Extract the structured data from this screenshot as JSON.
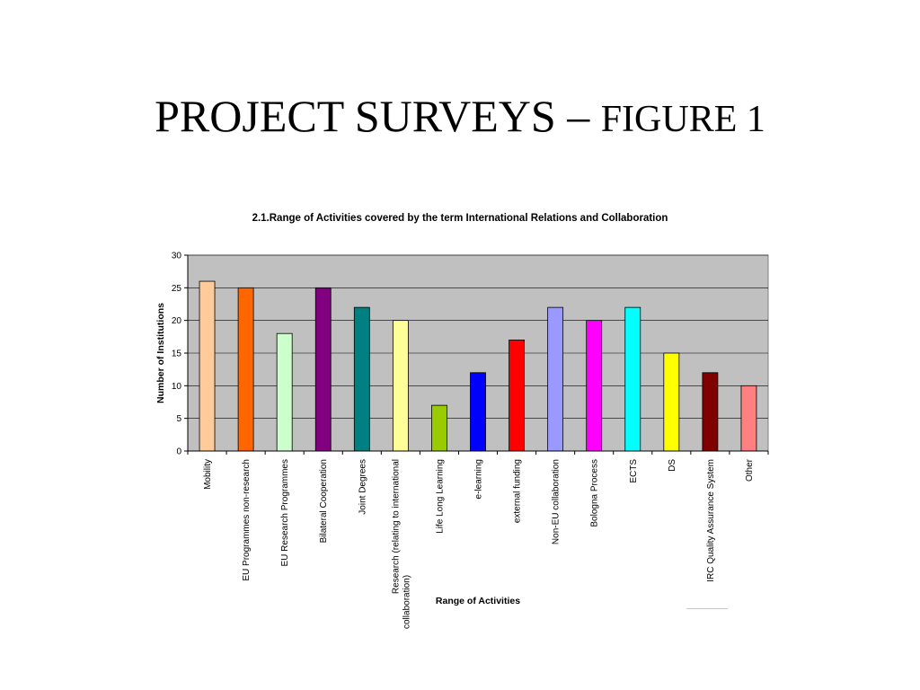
{
  "slide": {
    "title_main": "PROJECT SURVEYS – ",
    "title_sub": "FIGURE 1"
  },
  "chart_data": {
    "type": "bar",
    "title": "2.1.Range of Activities covered by the term International Relations and Collaboration",
    "xlabel": "Range of Activities",
    "ylabel": "Number of Institutions",
    "ylim": [
      0,
      30
    ],
    "yticks": [
      0,
      5,
      10,
      15,
      20,
      25,
      30
    ],
    "grid": true,
    "plot_background": "#c0c0c0",
    "categories": [
      "Mobility",
      "EU Programmes non-research",
      "EU Research Programmes",
      "Bilateral Cooperation",
      "Joint Degrees",
      "Research (relating to international collaboration)",
      "Life Long Learning",
      "e-learning",
      "external funding",
      "Non-EU collaboration",
      "Bologna Process",
      "ECTS",
      "DS",
      "IRC Quality Assurance System",
      "Other"
    ],
    "values": [
      26,
      25,
      18,
      25,
      22,
      20,
      7,
      12,
      17,
      22,
      20,
      22,
      15,
      12,
      10
    ],
    "colors": [
      "#ffcc99",
      "#ff6600",
      "#ccffcc",
      "#800080",
      "#008080",
      "#ffff99",
      "#99cc00",
      "#0000ff",
      "#ff0000",
      "#9999ff",
      "#ff00ff",
      "#00ffff",
      "#ffff00",
      "#800000",
      "#ff8080"
    ]
  }
}
